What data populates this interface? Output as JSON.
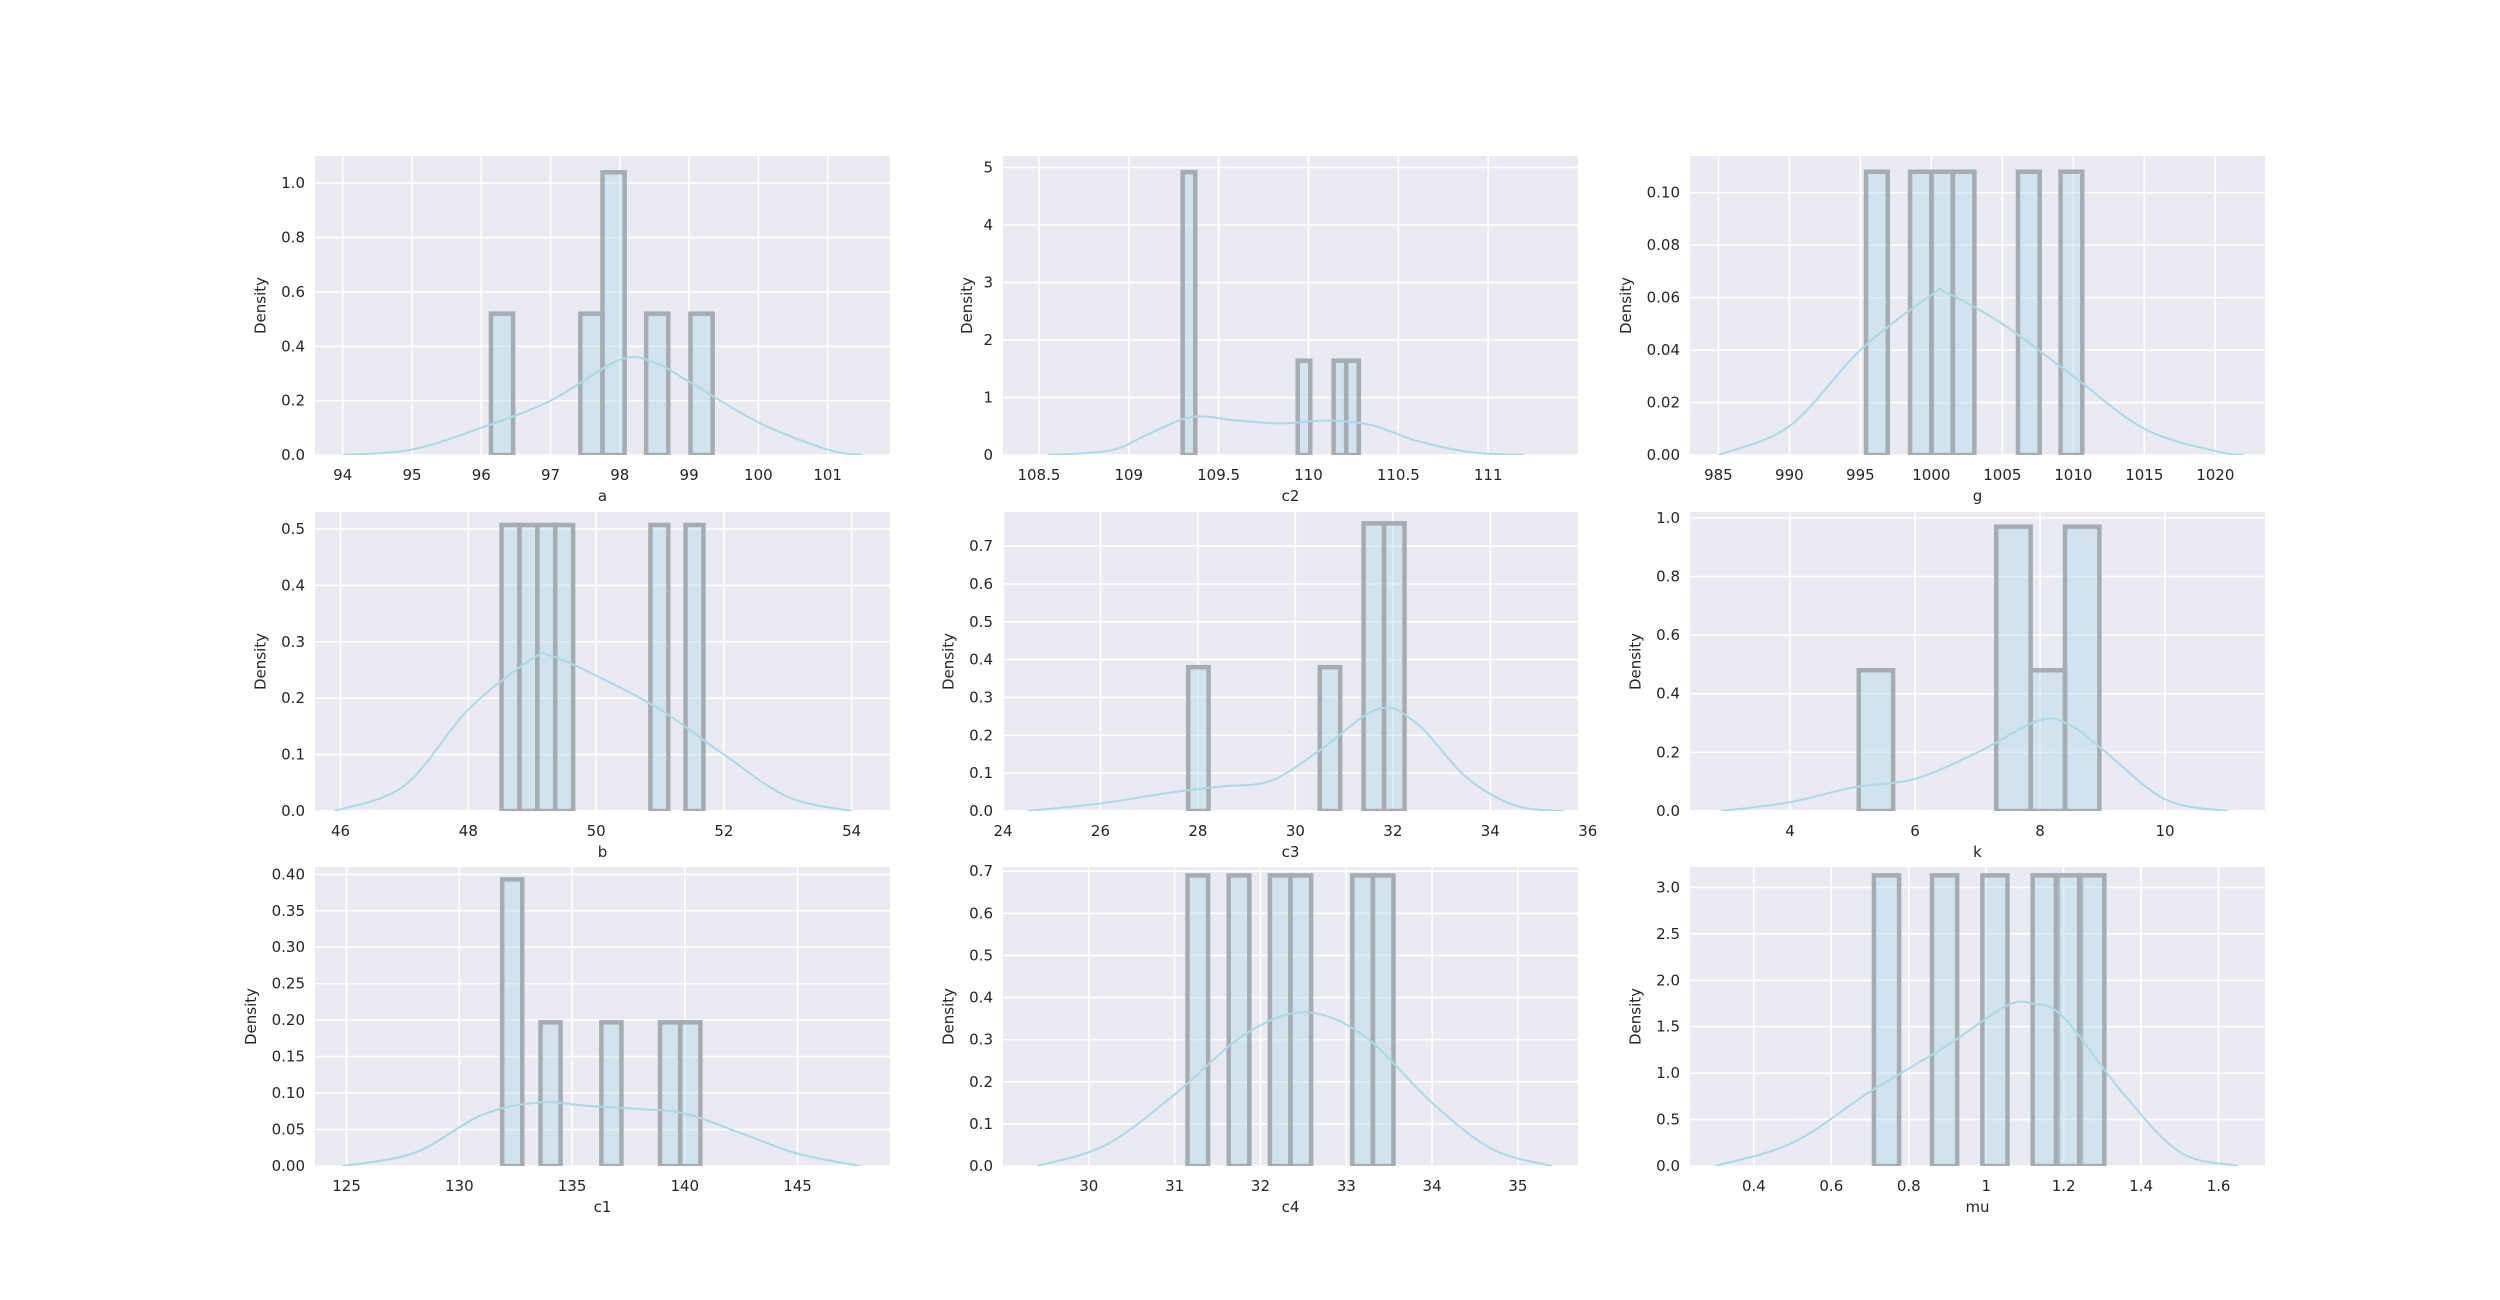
{
  "chart_data": [
    {
      "type": "bar",
      "xlabel": "a",
      "ylabel": "Density",
      "xlim": [
        93.6,
        101.9
      ],
      "ylim": [
        0,
        1.1
      ],
      "xticks": [
        94,
        95,
        96,
        97,
        98,
        99,
        100,
        101
      ],
      "yticks": [
        0.0,
        0.2,
        0.4,
        0.6,
        0.8,
        1.0
      ],
      "bar_width": 0.32,
      "bars": [
        {
          "x": 96.14,
          "height": 0.52
        },
        {
          "x": 97.43,
          "height": 0.52
        },
        {
          "x": 97.75,
          "height": 1.04
        },
        {
          "x": 98.38,
          "height": 0.52
        },
        {
          "x": 99.02,
          "height": 0.52
        }
      ],
      "kde": {
        "x": [
          94.0,
          95.0,
          96.0,
          97.0,
          98.0,
          98.5,
          99.0,
          100.0,
          101.0,
          101.5
        ],
        "y": [
          0.0,
          0.02,
          0.1,
          0.2,
          0.35,
          0.34,
          0.27,
          0.12,
          0.02,
          0.0
        ]
      }
    },
    {
      "type": "bar",
      "xlabel": "c2",
      "ylabel": "Density",
      "xlim": [
        108.3,
        111.5
      ],
      "ylim": [
        0,
        5.2
      ],
      "xticks": [
        108.5,
        109.0,
        109.5,
        110.0,
        110.5,
        111.0
      ],
      "yticks": [
        0,
        1,
        2,
        3,
        4,
        5
      ],
      "bar_width": 0.07,
      "bars": [
        {
          "x": 109.3,
          "height": 4.92
        },
        {
          "x": 109.94,
          "height": 1.64
        },
        {
          "x": 110.14,
          "height": 1.64
        },
        {
          "x": 110.21,
          "height": 1.64
        }
      ],
      "kde": {
        "x": [
          108.55,
          108.9,
          109.1,
          109.35,
          109.6,
          109.85,
          110.1,
          110.35,
          110.6,
          110.9,
          111.2
        ],
        "y": [
          0.0,
          0.08,
          0.35,
          0.66,
          0.6,
          0.55,
          0.6,
          0.52,
          0.25,
          0.05,
          0.0
        ]
      }
    },
    {
      "type": "bar",
      "xlabel": "g",
      "ylabel": "Density",
      "xlim": [
        983,
        1023.5
      ],
      "ylim": [
        0,
        0.114
      ],
      "xticks": [
        985,
        990,
        995,
        1000,
        1005,
        1010,
        1015,
        1020
      ],
      "yticks": [
        0.0,
        0.02,
        0.04,
        0.06,
        0.08,
        0.1
      ],
      "ytick_labels": [
        "0.00",
        "0.02",
        "0.04",
        "0.06",
        "0.08",
        "0.10"
      ],
      "bar_width": 1.53,
      "bars": [
        {
          "x": 995.4,
          "height": 0.108
        },
        {
          "x": 998.5,
          "height": 0.108
        },
        {
          "x": 1000.0,
          "height": 0.108
        },
        {
          "x": 1001.5,
          "height": 0.108
        },
        {
          "x": 1006.1,
          "height": 0.108
        },
        {
          "x": 1009.1,
          "height": 0.108
        }
      ],
      "kde": {
        "x": [
          985.0,
          990.0,
          995.0,
          1000.0,
          1001.0,
          1005.0,
          1010.0,
          1015.0,
          1020.0,
          1022.0
        ],
        "y": [
          0.0,
          0.011,
          0.04,
          0.061,
          0.062,
          0.05,
          0.03,
          0.01,
          0.0015,
          0.0
        ]
      }
    },
    {
      "type": "bar",
      "xlabel": "b",
      "ylabel": "Density",
      "xlim": [
        45.6,
        54.6
      ],
      "ylim": [
        0,
        0.53
      ],
      "xticks": [
        46,
        48,
        50,
        52,
        54
      ],
      "yticks": [
        0.0,
        0.1,
        0.2,
        0.3,
        0.4,
        0.5
      ],
      "bar_width": 0.28,
      "bars": [
        {
          "x": 48.52,
          "height": 0.507
        },
        {
          "x": 48.8,
          "height": 0.507
        },
        {
          "x": 49.08,
          "height": 0.507
        },
        {
          "x": 49.36,
          "height": 0.507
        },
        {
          "x": 50.85,
          "height": 0.507
        },
        {
          "x": 51.4,
          "height": 0.507
        }
      ],
      "kde": {
        "x": [
          45.9,
          47.0,
          48.0,
          49.0,
          49.3,
          50.0,
          51.0,
          52.0,
          53.0,
          54.0
        ],
        "y": [
          0.0,
          0.045,
          0.18,
          0.27,
          0.275,
          0.24,
          0.18,
          0.1,
          0.025,
          0.0
        ]
      }
    },
    {
      "type": "bar",
      "xlabel": "c3",
      "ylabel": "Density",
      "xlim": [
        24,
        35.8
      ],
      "ylim": [
        0,
        0.79
      ],
      "xticks": [
        24,
        26,
        28,
        30,
        32,
        34,
        36
      ],
      "yticks": [
        0.0,
        0.1,
        0.2,
        0.3,
        0.4,
        0.5,
        0.6,
        0.7
      ],
      "bar_width": 0.42,
      "bars": [
        {
          "x": 27.8,
          "height": 0.38
        },
        {
          "x": 30.5,
          "height": 0.38
        },
        {
          "x": 31.4,
          "height": 0.76
        },
        {
          "x": 31.82,
          "height": 0.76
        }
      ],
      "kde": {
        "x": [
          24.5,
          26.0,
          27.5,
          28.5,
          29.5,
          30.5,
          31.7,
          32.5,
          33.5,
          34.5,
          35.5
        ],
        "y": [
          0.0,
          0.02,
          0.05,
          0.065,
          0.08,
          0.16,
          0.27,
          0.23,
          0.09,
          0.015,
          0.0
        ]
      }
    },
    {
      "type": "bar",
      "xlabel": "k",
      "ylabel": "Density",
      "xlim": [
        2.4,
        11.6
      ],
      "ylim": [
        0,
        1.02
      ],
      "xticks": [
        4,
        6,
        8,
        10
      ],
      "yticks": [
        0.0,
        0.2,
        0.4,
        0.6,
        0.8,
        1.0
      ],
      "bar_width": 0.55,
      "bars": [
        {
          "x": 5.1,
          "height": 0.48
        },
        {
          "x": 7.3,
          "height": 0.97
        },
        {
          "x": 7.85,
          "height": 0.48
        },
        {
          "x": 8.4,
          "height": 0.97
        }
      ],
      "kde": {
        "x": [
          2.9,
          4.0,
          5.0,
          6.0,
          7.0,
          8.0,
          8.5,
          9.0,
          10.0,
          11.0
        ],
        "y": [
          0.0,
          0.03,
          0.08,
          0.11,
          0.2,
          0.31,
          0.29,
          0.21,
          0.04,
          0.0
        ]
      }
    },
    {
      "type": "bar",
      "xlabel": "c1",
      "ylabel": "Density",
      "xlim": [
        123.6,
        149.1
      ],
      "ylim": [
        0,
        0.41
      ],
      "xticks": [
        125,
        130,
        135,
        140,
        145
      ],
      "yticks": [
        0.0,
        0.05,
        0.1,
        0.15,
        0.2,
        0.25,
        0.3,
        0.35,
        0.4
      ],
      "ytick_labels": [
        "0.00",
        "0.05",
        "0.10",
        "0.15",
        "0.20",
        "0.25",
        "0.30",
        "0.35",
        "0.40"
      ],
      "bar_width": 0.89,
      "bars": [
        {
          "x": 131.9,
          "height": 0.393
        },
        {
          "x": 133.6,
          "height": 0.197
        },
        {
          "x": 136.3,
          "height": 0.197
        },
        {
          "x": 138.9,
          "height": 0.197
        },
        {
          "x": 139.8,
          "height": 0.197
        }
      ],
      "kde": {
        "x": [
          124.8,
          128.0,
          131.0,
          133.5,
          135.5,
          138.0,
          140.0,
          142.5,
          145.0,
          147.8
        ],
        "y": [
          0.0,
          0.018,
          0.07,
          0.087,
          0.083,
          0.078,
          0.072,
          0.045,
          0.017,
          0.0
        ]
      }
    },
    {
      "type": "bar",
      "xlabel": "c4",
      "ylabel": "Density",
      "xlim": [
        29.0,
        35.7
      ],
      "ylim": [
        0,
        0.71
      ],
      "xticks": [
        30,
        31,
        32,
        33,
        34,
        35
      ],
      "yticks": [
        0.0,
        0.1,
        0.2,
        0.3,
        0.4,
        0.5,
        0.6,
        0.7
      ],
      "bar_width": 0.24,
      "bars": [
        {
          "x": 31.15,
          "height": 0.69
        },
        {
          "x": 31.63,
          "height": 0.69
        },
        {
          "x": 32.11,
          "height": 0.69
        },
        {
          "x": 32.35,
          "height": 0.69
        },
        {
          "x": 33.07,
          "height": 0.69
        },
        {
          "x": 33.31,
          "height": 0.69
        }
      ],
      "kde": {
        "x": [
          29.4,
          30.2,
          31.0,
          31.8,
          32.5,
          33.2,
          34.0,
          34.7,
          35.4
        ],
        "y": [
          0.0,
          0.05,
          0.17,
          0.31,
          0.365,
          0.31,
          0.15,
          0.04,
          0.0
        ]
      }
    },
    {
      "type": "bar",
      "xlabel": "mu",
      "ylabel": "Density",
      "xlim": [
        0.235,
        1.72
      ],
      "ylim": [
        0,
        3.22
      ],
      "xticks": [
        0.4,
        0.6,
        0.8,
        1.0,
        1.2,
        1.4,
        1.6
      ],
      "yticks": [
        0.0,
        0.5,
        1.0,
        1.5,
        2.0,
        2.5,
        3.0
      ],
      "bar_width": 0.065,
      "bars": [
        {
          "x": 0.71,
          "height": 3.13
        },
        {
          "x": 0.86,
          "height": 3.13
        },
        {
          "x": 0.99,
          "height": 3.13
        },
        {
          "x": 1.12,
          "height": 3.13
        },
        {
          "x": 1.18,
          "height": 3.13
        },
        {
          "x": 1.24,
          "height": 3.13
        }
      ],
      "kde": {
        "x": [
          0.3,
          0.5,
          0.7,
          0.9,
          1.05,
          1.12,
          1.2,
          1.35,
          1.5,
          1.65
        ],
        "y": [
          0.0,
          0.25,
          0.8,
          1.3,
          1.72,
          1.75,
          1.6,
          0.8,
          0.15,
          0.0
        ]
      }
    }
  ]
}
